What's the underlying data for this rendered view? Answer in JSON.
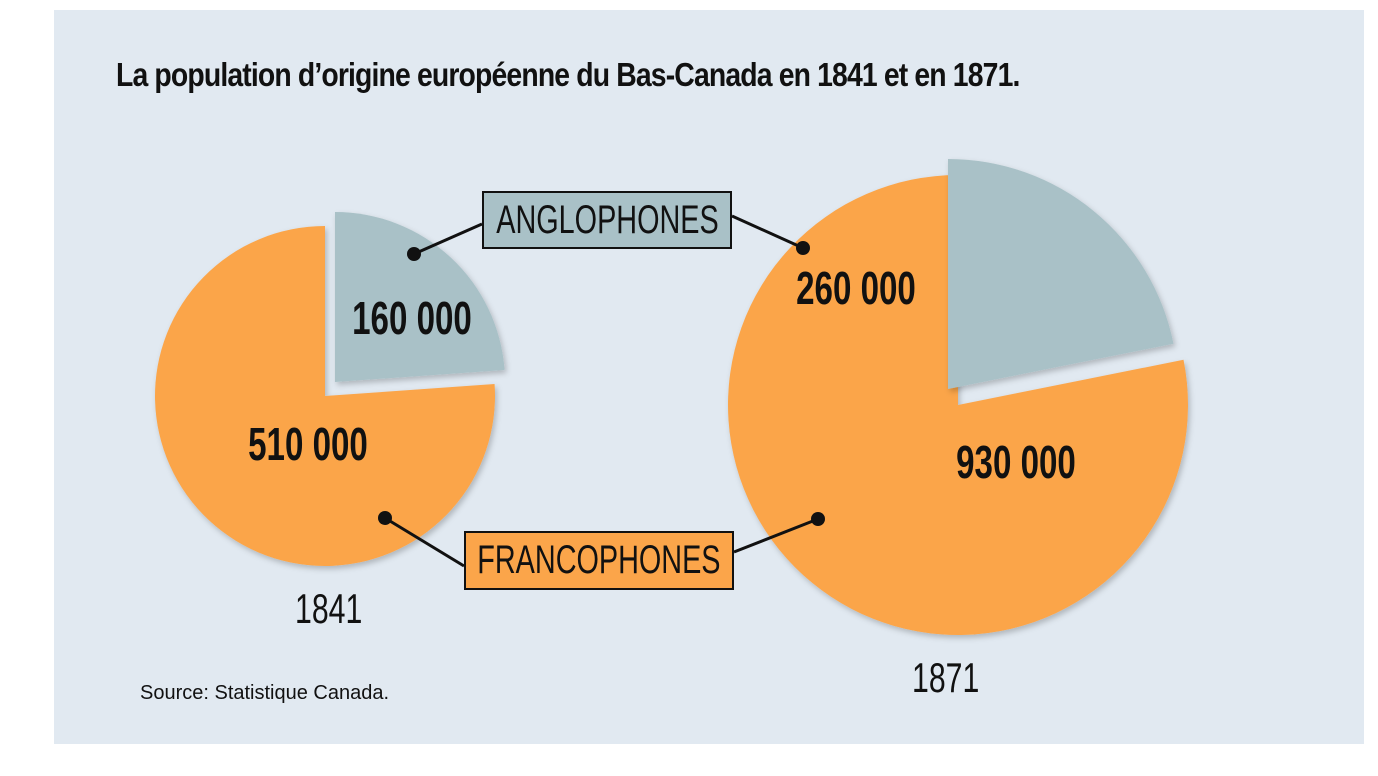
{
  "chart_data": {
    "type": "pie",
    "title": "La population d’origine européenne du Bas-Canada en 1841 et en 1871.",
    "source": "Source: Statistique Canada.",
    "legend": [
      "ANGLOPHONES",
      "FRANCOPHONES"
    ],
    "series": [
      {
        "year": "1841",
        "slices": [
          {
            "category": "ANGLOPHONES",
            "value": 160000,
            "label": "160 000",
            "color": "#a9c1c7"
          },
          {
            "category": "FRANCOPHONES",
            "value": 510000,
            "label": "510 000",
            "color": "#fba54a"
          }
        ]
      },
      {
        "year": "1871",
        "slices": [
          {
            "category": "ANGLOPHONES",
            "value": 260000,
            "label": "260 000",
            "color": "#a9c1c7"
          },
          {
            "category": "FRANCOPHONES",
            "value": 930000,
            "label": "930 000",
            "color": "#fba54a"
          }
        ]
      }
    ]
  }
}
